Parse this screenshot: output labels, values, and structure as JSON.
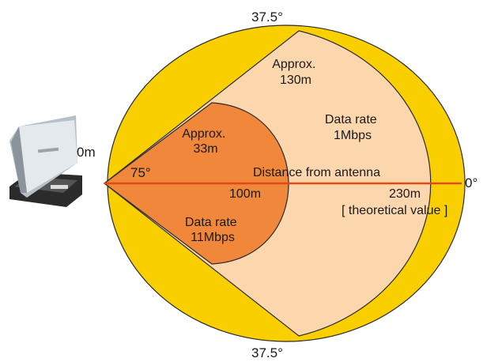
{
  "colors": {
    "outer_zone": "#f9cf00",
    "far_zone": "#fcd7ae",
    "near_zone": "#f0873a",
    "range_line": "#e04a14",
    "outline": "#2a2a2a"
  },
  "icons": {
    "antenna": "wireless-access-point-icon"
  },
  "labels": {
    "angle_top": "37.5°",
    "angle_bottom": "37.5°",
    "angle_center": "75°",
    "origin": "0m",
    "zero_degree": "0°",
    "far_range": [
      "Approx.",
      "130m"
    ],
    "near_range": [
      "Approx.",
      "33m"
    ],
    "far_rate": [
      "Data rate",
      "1Mbps"
    ],
    "near_rate": [
      "Data rate",
      "11Mbps"
    ],
    "axis_title": "Distance from antenna",
    "mark_near": "100m",
    "mark_far": "230m",
    "theoretical": "[ theoretical value ]"
  }
}
